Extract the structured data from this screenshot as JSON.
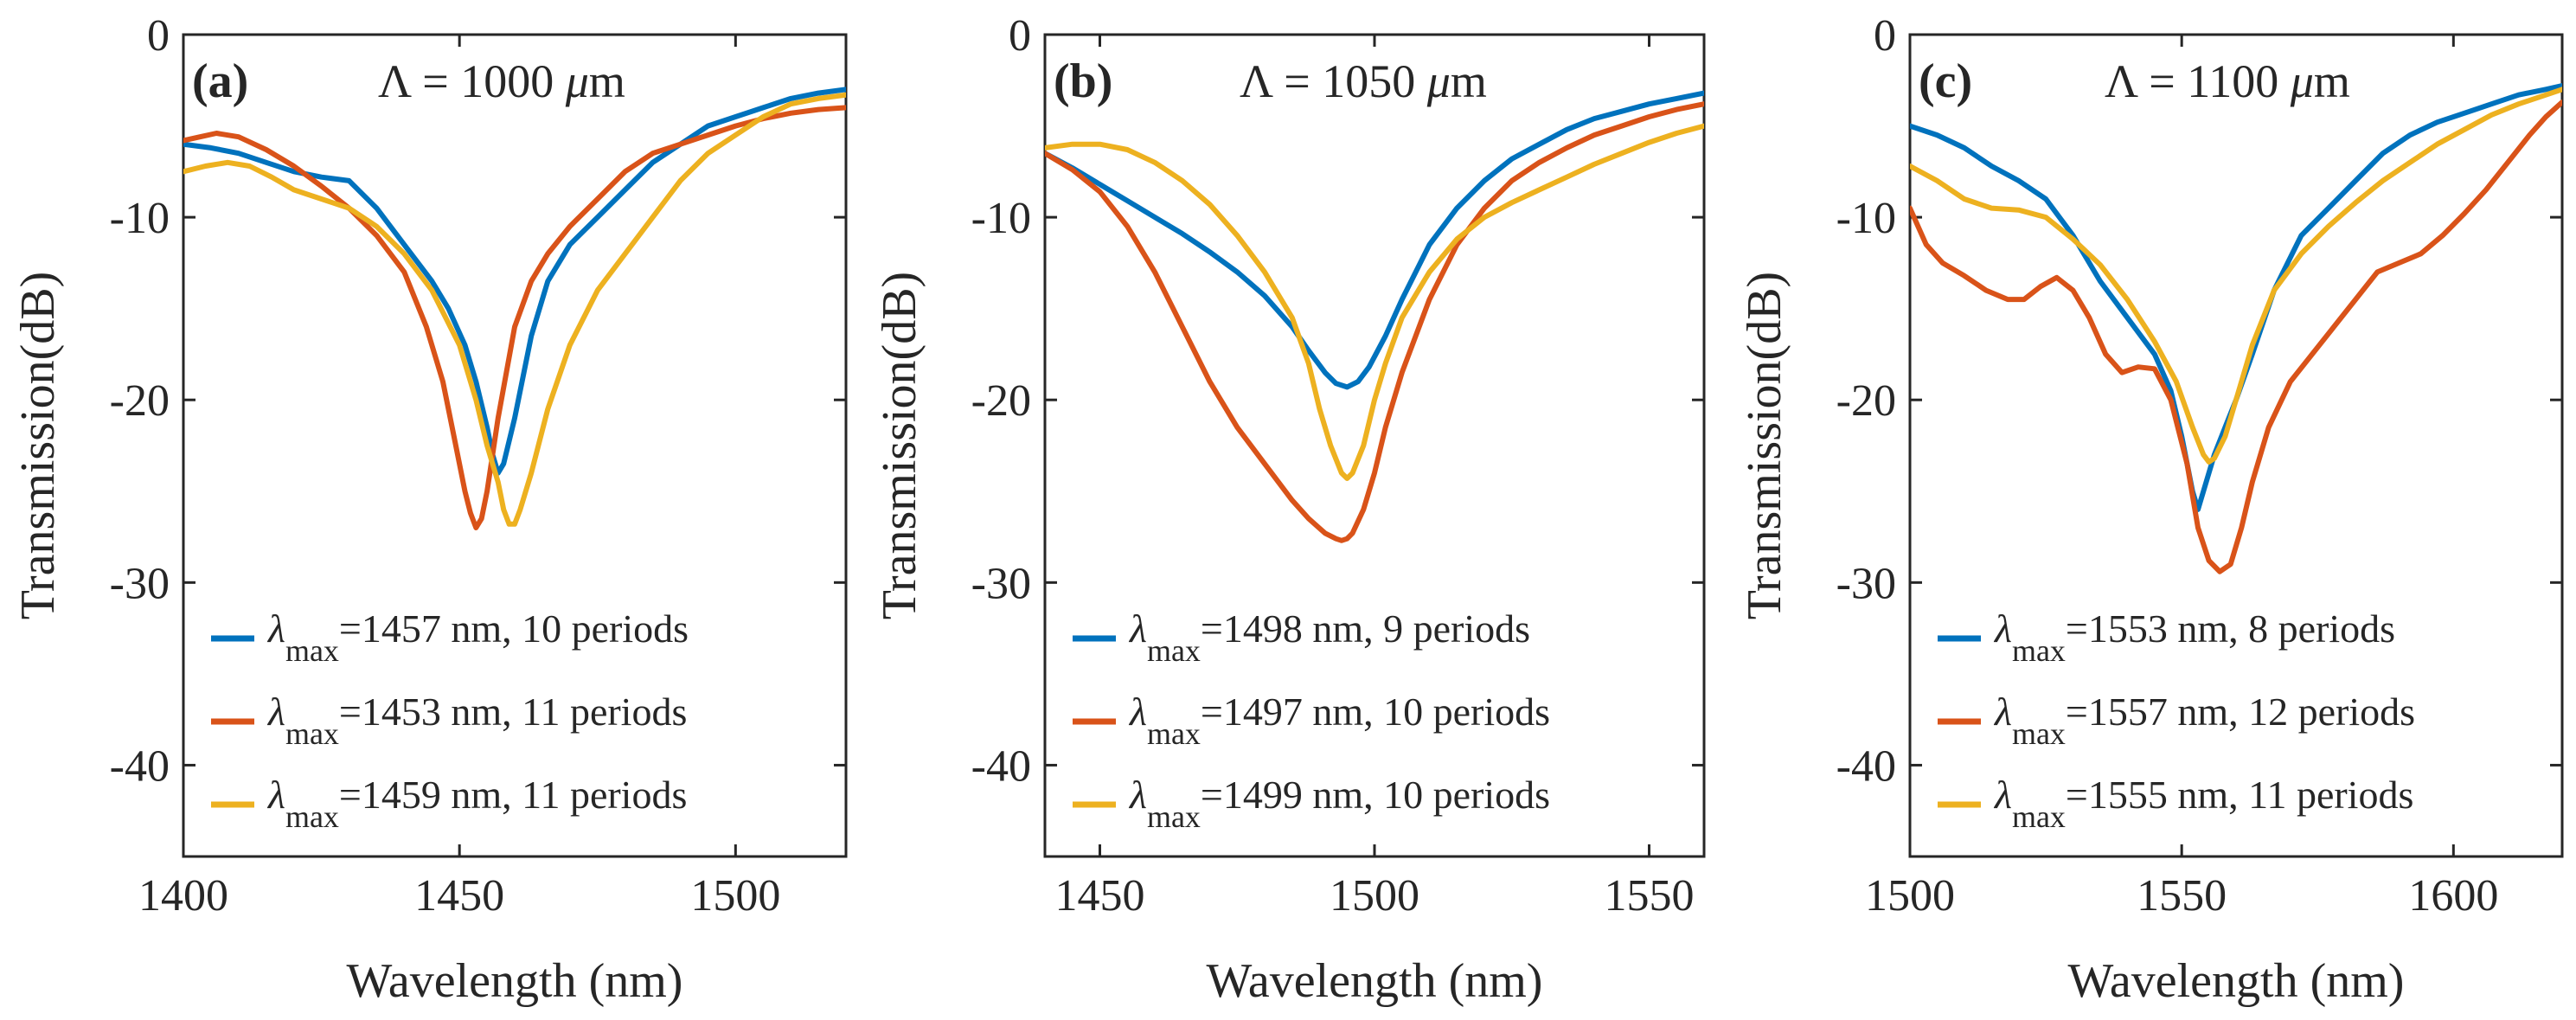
{
  "chart_data": [
    {
      "type": "line",
      "panel_label": "(a)",
      "title_parts": {
        "symbol": "Λ",
        "middle": " = 1000 ",
        "unit_greek": "μ",
        "unit_rest": "m"
      },
      "xlabel": "Wavelength (nm)",
      "ylabel": "Transmission(dB)",
      "xlim": [
        1400,
        1520
      ],
      "ylim": [
        -45,
        0
      ],
      "xticks": [
        1400,
        1450,
        1500
      ],
      "yticks": [
        0,
        -10,
        -20,
        -30,
        -40
      ],
      "series": [
        {
          "name": "λmax=1457 nm, 10 periods",
          "legend_symbol": "λ",
          "legend_sub": "max",
          "legend_rest": "=1457 nm, 10 periods",
          "color": "#0072BD",
          "x": [
            1400,
            1405,
            1410,
            1415,
            1420,
            1425,
            1430,
            1435,
            1440,
            1445,
            1448,
            1451,
            1453,
            1455,
            1456,
            1457,
            1458,
            1460,
            1463,
            1466,
            1470,
            1475,
            1480,
            1485,
            1490,
            1495,
            1500,
            1505,
            1510,
            1515,
            1520
          ],
          "y": [
            -6,
            -6.2,
            -6.5,
            -7,
            -7.5,
            -7.8,
            -8,
            -9.5,
            -11.5,
            -13.5,
            -15,
            -17,
            -19,
            -21.5,
            -23,
            -24,
            -23.5,
            -21,
            -16.5,
            -13.5,
            -11.5,
            -10,
            -8.5,
            -7,
            -6,
            -5,
            -4.5,
            -4,
            -3.5,
            -3.2,
            -3
          ]
        },
        {
          "name": "λmax=1453 nm, 11 periods",
          "legend_symbol": "λ",
          "legend_sub": "max",
          "legend_rest": "=1453 nm, 11 periods",
          "color": "#D95319",
          "x": [
            1400,
            1403,
            1406,
            1410,
            1415,
            1420,
            1425,
            1430,
            1435,
            1440,
            1444,
            1447,
            1449,
            1451,
            1452,
            1453,
            1454,
            1455,
            1457,
            1460,
            1463,
            1466,
            1470,
            1475,
            1480,
            1485,
            1490,
            1495,
            1500,
            1505,
            1510,
            1515,
            1520
          ],
          "y": [
            -5.8,
            -5.6,
            -5.4,
            -5.6,
            -6.3,
            -7.2,
            -8.3,
            -9.5,
            -11,
            -13,
            -16,
            -19,
            -22,
            -25,
            -26.2,
            -27,
            -26.5,
            -25,
            -21,
            -16,
            -13.5,
            -12,
            -10.5,
            -9,
            -7.5,
            -6.5,
            -6,
            -5.5,
            -5,
            -4.6,
            -4.3,
            -4.1,
            -4
          ]
        },
        {
          "name": "λmax=1459 nm, 11 periods",
          "legend_symbol": "λ",
          "legend_sub": "max",
          "legend_rest": "=1459 nm, 11 periods",
          "color": "#EDB120",
          "x": [
            1400,
            1404,
            1408,
            1412,
            1416,
            1420,
            1425,
            1430,
            1435,
            1440,
            1445,
            1450,
            1453,
            1455,
            1457,
            1458,
            1459,
            1460,
            1461,
            1463,
            1466,
            1470,
            1475,
            1480,
            1485,
            1490,
            1495,
            1500,
            1505,
            1510,
            1515,
            1520
          ],
          "y": [
            -7.5,
            -7.2,
            -7,
            -7.2,
            -7.8,
            -8.5,
            -9,
            -9.5,
            -10.5,
            -12,
            -14,
            -17,
            -20,
            -22.5,
            -24.5,
            -26,
            -26.8,
            -26.8,
            -26,
            -24,
            -20.5,
            -17,
            -14,
            -12,
            -10,
            -8,
            -6.5,
            -5.5,
            -4.5,
            -3.8,
            -3.5,
            -3.3
          ]
        }
      ]
    },
    {
      "type": "line",
      "panel_label": "(b)",
      "title_parts": {
        "symbol": "Λ",
        "middle": " = 1050 ",
        "unit_greek": "μ",
        "unit_rest": "m"
      },
      "xlabel": "Wavelength (nm)",
      "ylabel": "Transmission(dB)",
      "xlim": [
        1440,
        1560
      ],
      "ylim": [
        -45,
        0
      ],
      "xticks": [
        1450,
        1500,
        1550
      ],
      "yticks": [
        0,
        -10,
        -20,
        -30,
        -40
      ],
      "series": [
        {
          "name": "λmax=1498 nm, 9 periods",
          "legend_symbol": "λ",
          "legend_sub": "max",
          "legend_rest": "=1498 nm, 9 periods",
          "color": "#0072BD",
          "x": [
            1440,
            1445,
            1450,
            1455,
            1460,
            1465,
            1470,
            1475,
            1480,
            1485,
            1488,
            1491,
            1493,
            1495,
            1497,
            1499,
            1502,
            1505,
            1510,
            1515,
            1520,
            1525,
            1530,
            1535,
            1540,
            1545,
            1550,
            1555,
            1560
          ],
          "y": [
            -6.5,
            -7.3,
            -8.2,
            -9.1,
            -10,
            -10.9,
            -11.9,
            -13,
            -14.3,
            -16,
            -17.3,
            -18.5,
            -19.1,
            -19.3,
            -19,
            -18.2,
            -16.5,
            -14.5,
            -11.5,
            -9.5,
            -8,
            -6.8,
            -6,
            -5.2,
            -4.6,
            -4.2,
            -3.8,
            -3.5,
            -3.2
          ]
        },
        {
          "name": "λmax=1497 nm, 10 periods",
          "legend_symbol": "λ",
          "legend_sub": "max",
          "legend_rest": "=1497 nm, 10 periods",
          "color": "#D95319",
          "x": [
            1440,
            1445,
            1450,
            1455,
            1460,
            1465,
            1470,
            1475,
            1480,
            1485,
            1488,
            1491,
            1493,
            1494,
            1495,
            1496,
            1498,
            1500,
            1502,
            1505,
            1510,
            1515,
            1520,
            1525,
            1530,
            1535,
            1540,
            1545,
            1550,
            1555,
            1560
          ],
          "y": [
            -6.5,
            -7.4,
            -8.6,
            -10.5,
            -13,
            -16,
            -19,
            -21.5,
            -23.5,
            -25.5,
            -26.5,
            -27.3,
            -27.6,
            -27.7,
            -27.6,
            -27.3,
            -26,
            -24,
            -21.5,
            -18.5,
            -14.5,
            -11.5,
            -9.5,
            -8,
            -7,
            -6.2,
            -5.5,
            -5,
            -4.5,
            -4.1,
            -3.8
          ]
        },
        {
          "name": "λmax=1499 nm, 10 periods",
          "legend_symbol": "λ",
          "legend_sub": "max",
          "legend_rest": "=1499 nm, 10 periods",
          "color": "#EDB120",
          "x": [
            1440,
            1445,
            1450,
            1455,
            1460,
            1465,
            1470,
            1475,
            1480,
            1485,
            1488,
            1490,
            1492,
            1494,
            1495,
            1496,
            1498,
            1500,
            1502,
            1505,
            1510,
            1515,
            1520,
            1525,
            1530,
            1535,
            1540,
            1545,
            1550,
            1555,
            1560
          ],
          "y": [
            -6.2,
            -6,
            -6,
            -6.3,
            -7,
            -8,
            -9.3,
            -11,
            -13,
            -15.5,
            -18,
            -20.5,
            -22.5,
            -24,
            -24.3,
            -24,
            -22.5,
            -20,
            -18,
            -15.5,
            -13,
            -11.2,
            -10,
            -9.2,
            -8.5,
            -7.8,
            -7.1,
            -6.5,
            -5.9,
            -5.4,
            -5
          ]
        }
      ]
    },
    {
      "type": "line",
      "panel_label": "(c)",
      "title_parts": {
        "symbol": "Λ",
        "middle": " = 1100 ",
        "unit_greek": "μ",
        "unit_rest": "m"
      },
      "xlabel": "Wavelength (nm)",
      "ylabel": "Transmission(dB)",
      "xlim": [
        1500,
        1620
      ],
      "ylim": [
        -45,
        0
      ],
      "xticks": [
        1500,
        1550,
        1600
      ],
      "yticks": [
        0,
        -10,
        -20,
        -30,
        -40
      ],
      "series": [
        {
          "name": "λmax=1553 nm, 8 periods",
          "legend_symbol": "λ",
          "legend_sub": "max",
          "legend_rest": "=1553 nm, 8 periods",
          "color": "#0072BD",
          "x": [
            1500,
            1505,
            1510,
            1515,
            1520,
            1525,
            1530,
            1535,
            1540,
            1545,
            1548,
            1550,
            1552,
            1553,
            1554,
            1556,
            1558,
            1560,
            1563,
            1567,
            1572,
            1577,
            1582,
            1587,
            1592,
            1597,
            1602,
            1607,
            1612,
            1617,
            1620
          ],
          "y": [
            -5,
            -5.5,
            -6.2,
            -7.2,
            -8,
            -9,
            -11,
            -13.5,
            -15.5,
            -17.5,
            -19.5,
            -22,
            -25,
            -26,
            -25,
            -23,
            -21.5,
            -20,
            -17.5,
            -14,
            -11,
            -9.5,
            -8,
            -6.5,
            -5.5,
            -4.8,
            -4.3,
            -3.8,
            -3.3,
            -3,
            -2.8
          ]
        },
        {
          "name": "λmax=1557 nm, 12 periods",
          "legend_symbol": "λ",
          "legend_sub": "max",
          "legend_rest": "=1557 nm, 12 periods",
          "color": "#D95319",
          "x": [
            1500,
            1503,
            1506,
            1510,
            1514,
            1518,
            1521,
            1524,
            1527,
            1530,
            1533,
            1536,
            1539,
            1542,
            1545,
            1548,
            1551,
            1553,
            1555,
            1557,
            1559,
            1561,
            1563,
            1566,
            1570,
            1574,
            1578,
            1582,
            1586,
            1590,
            1594,
            1598,
            1602,
            1606,
            1610,
            1614,
            1617,
            1620
          ],
          "y": [
            -9.5,
            -11.5,
            -12.5,
            -13.2,
            -14,
            -14.5,
            -14.5,
            -13.8,
            -13.3,
            -14,
            -15.5,
            -17.5,
            -18.5,
            -18.2,
            -18.3,
            -20,
            -23.5,
            -27,
            -28.8,
            -29.4,
            -29,
            -27,
            -24.5,
            -21.5,
            -19,
            -17.5,
            -16,
            -14.5,
            -13,
            -12.5,
            -12,
            -11,
            -9.8,
            -8.5,
            -7,
            -5.5,
            -4.5,
            -3.7
          ]
        },
        {
          "name": "λmax=1555 nm, 11 periods",
          "legend_symbol": "λ",
          "legend_sub": "max",
          "legend_rest": "=1555 nm, 11 periods",
          "color": "#EDB120",
          "x": [
            1500,
            1505,
            1510,
            1515,
            1520,
            1525,
            1530,
            1535,
            1540,
            1545,
            1549,
            1552,
            1554,
            1555,
            1556,
            1558,
            1560,
            1563,
            1567,
            1572,
            1577,
            1582,
            1587,
            1592,
            1597,
            1602,
            1607,
            1612,
            1617,
            1620
          ],
          "y": [
            -7.2,
            -8,
            -9,
            -9.5,
            -9.6,
            -10,
            -11.2,
            -12.6,
            -14.5,
            -16.8,
            -19,
            -21.5,
            -23,
            -23.4,
            -23.2,
            -22,
            -20,
            -17,
            -14,
            -12,
            -10.5,
            -9.2,
            -8,
            -7,
            -6,
            -5.2,
            -4.4,
            -3.8,
            -3.3,
            -3
          ]
        }
      ]
    }
  ]
}
